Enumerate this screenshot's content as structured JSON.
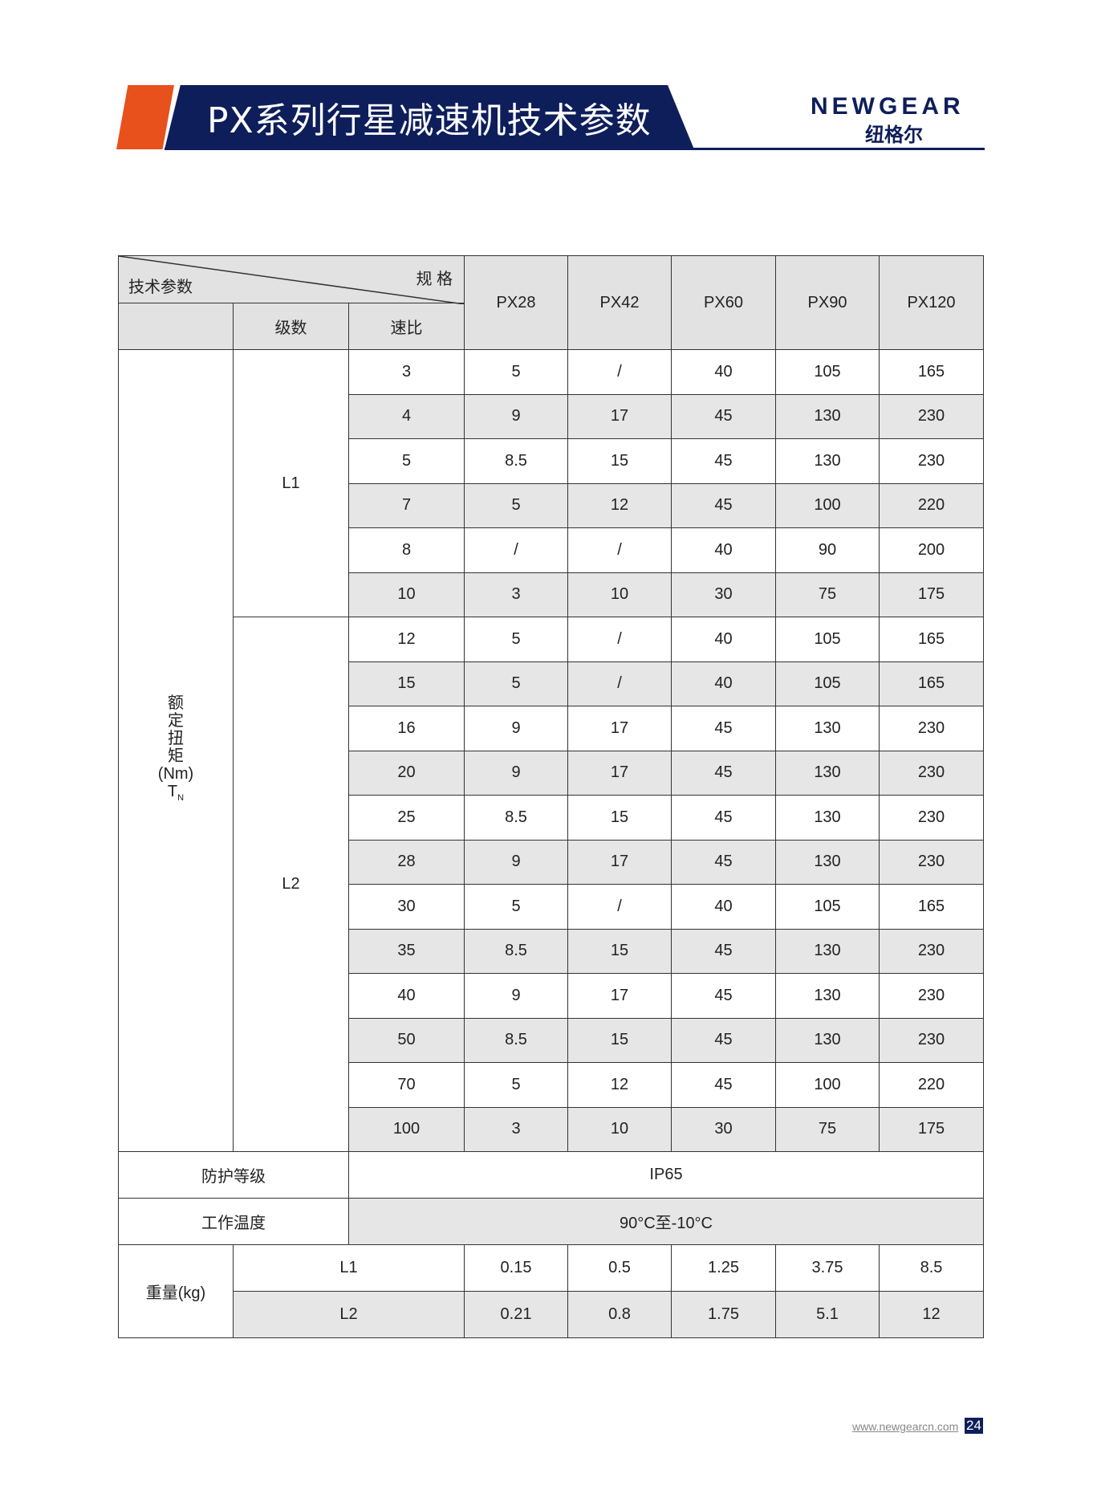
{
  "header": {
    "title": "PX系列行星减速机技术参数",
    "logo_en": "NEWGEAR",
    "logo_cn": "纽格尔",
    "colors": {
      "navy": "#0e1e5b",
      "orange": "#e8501c"
    }
  },
  "table": {
    "corner_left": "技术参数",
    "corner_right": "规 格",
    "stage_label": "级数",
    "ratio_label": "速比",
    "models": [
      "PX28",
      "PX42",
      "PX60",
      "PX90",
      "PX120"
    ],
    "torque_label": [
      "额",
      "定",
      "扭",
      "矩",
      "(Nm)",
      "T",
      "N"
    ],
    "l1_label": "L1",
    "l2_label": "L2",
    "l1_rows": [
      [
        "3",
        "5",
        "/",
        "40",
        "105",
        "165"
      ],
      [
        "4",
        "9",
        "17",
        "45",
        "130",
        "230"
      ],
      [
        "5",
        "8.5",
        "15",
        "45",
        "130",
        "230"
      ],
      [
        "7",
        "5",
        "12",
        "45",
        "100",
        "220"
      ],
      [
        "8",
        "/",
        "/",
        "40",
        "90",
        "200"
      ],
      [
        "10",
        "3",
        "10",
        "30",
        "75",
        "175"
      ]
    ],
    "l2_rows": [
      [
        "12",
        "5",
        "/",
        "40",
        "105",
        "165"
      ],
      [
        "15",
        "5",
        "/",
        "40",
        "105",
        "165"
      ],
      [
        "16",
        "9",
        "17",
        "45",
        "130",
        "230"
      ],
      [
        "20",
        "9",
        "17",
        "45",
        "130",
        "230"
      ],
      [
        "25",
        "8.5",
        "15",
        "45",
        "130",
        "230"
      ],
      [
        "28",
        "9",
        "17",
        "45",
        "130",
        "230"
      ],
      [
        "30",
        "5",
        "/",
        "40",
        "105",
        "165"
      ],
      [
        "35",
        "8.5",
        "15",
        "45",
        "130",
        "230"
      ],
      [
        "40",
        "9",
        "17",
        "45",
        "130",
        "230"
      ],
      [
        "50",
        "8.5",
        "15",
        "45",
        "130",
        "230"
      ],
      [
        "70",
        "5",
        "12",
        "45",
        "100",
        "220"
      ],
      [
        "100",
        "3",
        "10",
        "30",
        "75",
        "175"
      ]
    ],
    "protection_label": "防护等级",
    "protection_value": "IP65",
    "temp_label": "工作温度",
    "temp_value": "90°C至-10°C",
    "weight_label": "重量(kg)",
    "weight_rows": [
      [
        "L1",
        "0.15",
        "0.5",
        "1.25",
        "3.75",
        "8.5"
      ],
      [
        "L2",
        "0.21",
        "0.8",
        "1.75",
        "5.1",
        "12"
      ]
    ]
  },
  "footer": {
    "url": "www.newgearcn.com",
    "page": "24"
  }
}
